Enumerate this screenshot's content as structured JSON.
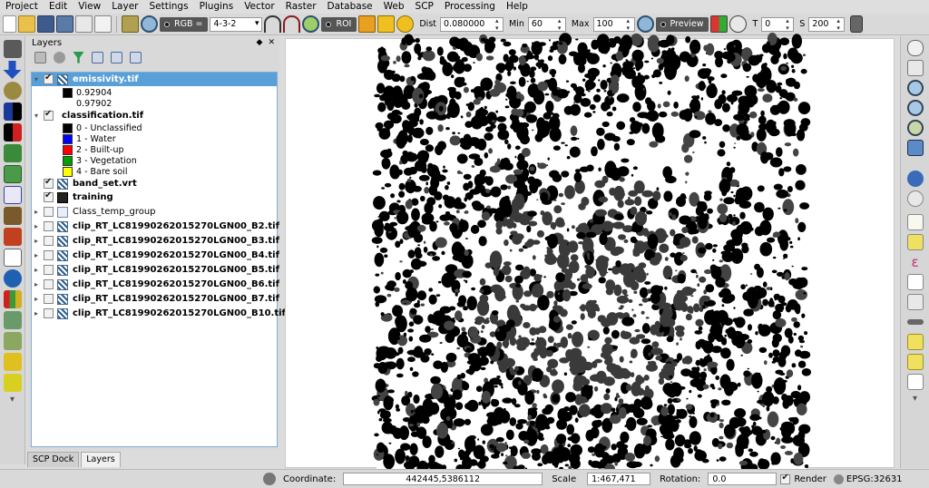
{
  "menubar": [
    "Project",
    "Edit",
    "View",
    "Layer",
    "Settings",
    "Plugins",
    "Vector",
    "Raster",
    "Database",
    "Web",
    "SCP",
    "Processing",
    "Help"
  ],
  "toolbar": {
    "rgb_button": "RGB =",
    "rgb_combo": "4-3-2",
    "roi_button": "ROI",
    "dist_label": "Dist",
    "dist_value": "0.080000",
    "min_label": "Min",
    "min_value": "60",
    "max_label": "Max",
    "max_value": "100",
    "preview_button": "Preview",
    "t_label": "T",
    "t_value": "0",
    "s_label": "S",
    "s_value": "200"
  },
  "layers_panel": {
    "title": "Layers",
    "layers": [
      {
        "name": "emissivity.tif",
        "checked": true,
        "expanded": true,
        "selected": true,
        "bold": true,
        "icon": "raster-icon"
      },
      {
        "legend": "0.92904",
        "color": "#000000"
      },
      {
        "legend": "0.97902",
        "color": "#ffffff"
      },
      {
        "name": "classification.tif",
        "checked": true,
        "expanded": true,
        "bold": true,
        "icon": "none"
      },
      {
        "legend": "0 - Unclassified",
        "color": "#000000"
      },
      {
        "legend": "1 - Water",
        "color": "#0000ff"
      },
      {
        "legend": "2 - Built-up",
        "color": "#ff0000"
      },
      {
        "legend": "3 - Vegetation",
        "color": "#00a000"
      },
      {
        "legend": "4 - Bare soil",
        "color": "#ffff00"
      },
      {
        "name": "band_set.vrt",
        "checked": true,
        "bold": true,
        "icon": "raster-icon"
      },
      {
        "name": "training",
        "checked": true,
        "bold": true,
        "icon": "square-icon"
      },
      {
        "name": "Class_temp_group",
        "checked": false,
        "group": true,
        "icon": "group-icon"
      },
      {
        "name": "clip_RT_LC81990262015270LGN00_B2.tif",
        "checked": false,
        "bold": true,
        "group": true,
        "icon": "raster-icon"
      },
      {
        "name": "clip_RT_LC81990262015270LGN00_B3.tif",
        "checked": false,
        "bold": true,
        "group": true,
        "icon": "raster-icon"
      },
      {
        "name": "clip_RT_LC81990262015270LGN00_B4.tif",
        "checked": false,
        "bold": true,
        "group": true,
        "icon": "raster-icon"
      },
      {
        "name": "clip_RT_LC81990262015270LGN00_B5.tif",
        "checked": false,
        "bold": true,
        "group": true,
        "icon": "raster-icon"
      },
      {
        "name": "clip_RT_LC81990262015270LGN00_B6.tif",
        "checked": false,
        "bold": true,
        "group": true,
        "icon": "raster-icon"
      },
      {
        "name": "clip_RT_LC81990262015270LGN00_B7.tif",
        "checked": false,
        "bold": true,
        "group": true,
        "icon": "raster-icon"
      },
      {
        "name": "clip_RT_LC81990262015270LGN00_B10.tif",
        "checked": false,
        "bold": true,
        "group": true,
        "icon": "raster-icon"
      }
    ]
  },
  "dock_tabs": [
    "SCP Dock",
    "Layers"
  ],
  "statusbar": {
    "coordinate_label": "Coordinate:",
    "coordinate_value": "442445,5386112",
    "scale_label": "Scale",
    "scale_value": "1:467,471",
    "rotation_label": "Rotation:",
    "rotation_value": "0.0",
    "render_label": "Render",
    "epsg": "EPSG:32631"
  }
}
